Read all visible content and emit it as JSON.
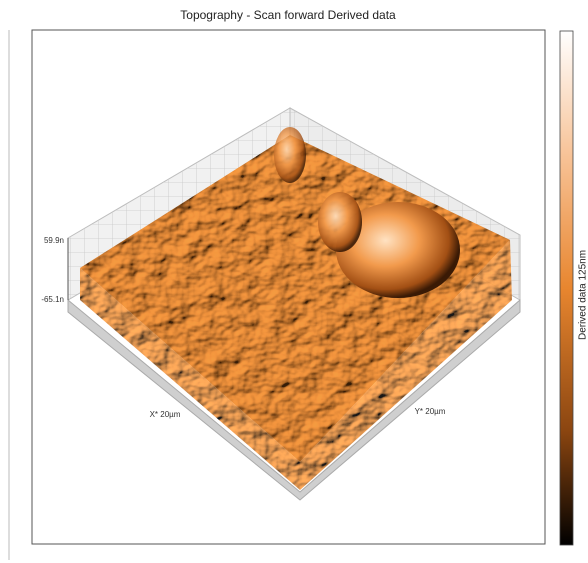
{
  "window": {
    "title": "Topography - Scan forward   Derived data"
  },
  "plot": {
    "z_max_label": "59.9n",
    "z_min_label": "-65.1n",
    "x_axis_label": "X* 20µm",
    "y_axis_label": "Y* 20µm"
  },
  "colorbar": {
    "label": "Derived data 125nm"
  }
}
